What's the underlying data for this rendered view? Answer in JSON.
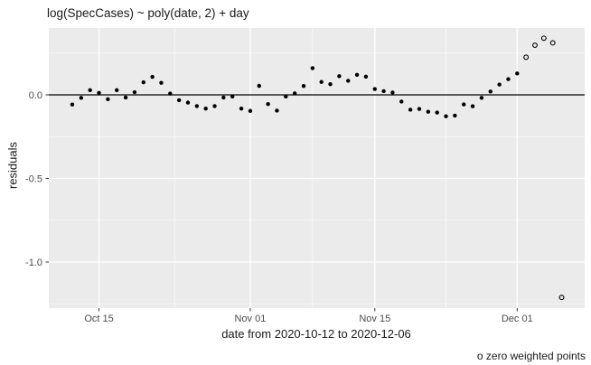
{
  "colors": {
    "panel_bg": "#ebebeb",
    "grid": "#ffffff",
    "point": "#000000",
    "tick_label": "#4d4d4d",
    "tick_mark": "#333333",
    "text": "#1a1a1a",
    "zero_line": "#000000"
  },
  "chart_data": {
    "type": "scatter",
    "title": "log(SpecCases) ~ poly(date, 2) + day",
    "xlabel": "date from 2020-10-12 to 2020-12-06",
    "ylabel": "residuals",
    "caption": "o zero weighted points",
    "zero_line": 0.0,
    "x_axis": {
      "start_date": "2020-10-12",
      "end_date": "2020-12-06",
      "ticks": [
        {
          "label": "Oct 15",
          "day": 3
        },
        {
          "label": "Nov 01",
          "day": 20
        },
        {
          "label": "Nov 15",
          "day": 34
        },
        {
          "label": "Dec 01",
          "day": 50
        }
      ],
      "minor_days": [
        11.5,
        27,
        42
      ]
    },
    "y_axis": {
      "ticks": [
        {
          "label": "0.0",
          "value": 0.0
        },
        {
          "label": "-0.5",
          "value": -0.5
        },
        {
          "label": "-1.0",
          "value": -1.0
        }
      ],
      "minor_values": [
        0.25,
        -0.25,
        -0.75,
        -1.25
      ],
      "range": [
        -1.28,
        0.4
      ]
    },
    "points": [
      {
        "day": 0,
        "residual": -0.058,
        "zero_weighted": false
      },
      {
        "day": 1,
        "residual": -0.018,
        "zero_weighted": false
      },
      {
        "day": 2,
        "residual": 0.028,
        "zero_weighted": false
      },
      {
        "day": 3,
        "residual": 0.012,
        "zero_weighted": false
      },
      {
        "day": 4,
        "residual": -0.026,
        "zero_weighted": false
      },
      {
        "day": 5,
        "residual": 0.028,
        "zero_weighted": false
      },
      {
        "day": 6,
        "residual": -0.016,
        "zero_weighted": false
      },
      {
        "day": 7,
        "residual": 0.016,
        "zero_weighted": false
      },
      {
        "day": 8,
        "residual": 0.075,
        "zero_weighted": false
      },
      {
        "day": 9,
        "residual": 0.108,
        "zero_weighted": false
      },
      {
        "day": 10,
        "residual": 0.072,
        "zero_weighted": false
      },
      {
        "day": 11,
        "residual": 0.008,
        "zero_weighted": false
      },
      {
        "day": 12,
        "residual": -0.032,
        "zero_weighted": false
      },
      {
        "day": 13,
        "residual": -0.046,
        "zero_weighted": false
      },
      {
        "day": 14,
        "residual": -0.067,
        "zero_weighted": false
      },
      {
        "day": 15,
        "residual": -0.082,
        "zero_weighted": false
      },
      {
        "day": 16,
        "residual": -0.067,
        "zero_weighted": false
      },
      {
        "day": 17,
        "residual": -0.016,
        "zero_weighted": false
      },
      {
        "day": 18,
        "residual": -0.01,
        "zero_weighted": false
      },
      {
        "day": 19,
        "residual": -0.082,
        "zero_weighted": false
      },
      {
        "day": 20,
        "residual": -0.096,
        "zero_weighted": false
      },
      {
        "day": 21,
        "residual": 0.054,
        "zero_weighted": false
      },
      {
        "day": 22,
        "residual": -0.055,
        "zero_weighted": false
      },
      {
        "day": 23,
        "residual": -0.094,
        "zero_weighted": false
      },
      {
        "day": 24,
        "residual": -0.01,
        "zero_weighted": false
      },
      {
        "day": 25,
        "residual": 0.009,
        "zero_weighted": false
      },
      {
        "day": 26,
        "residual": 0.053,
        "zero_weighted": false
      },
      {
        "day": 27,
        "residual": 0.16,
        "zero_weighted": false
      },
      {
        "day": 28,
        "residual": 0.077,
        "zero_weighted": false
      },
      {
        "day": 29,
        "residual": 0.064,
        "zero_weighted": false
      },
      {
        "day": 30,
        "residual": 0.112,
        "zero_weighted": false
      },
      {
        "day": 31,
        "residual": 0.084,
        "zero_weighted": false
      },
      {
        "day": 32,
        "residual": 0.12,
        "zero_weighted": false
      },
      {
        "day": 33,
        "residual": 0.109,
        "zero_weighted": false
      },
      {
        "day": 34,
        "residual": 0.035,
        "zero_weighted": false
      },
      {
        "day": 35,
        "residual": 0.022,
        "zero_weighted": false
      },
      {
        "day": 36,
        "residual": 0.014,
        "zero_weighted": false
      },
      {
        "day": 37,
        "residual": -0.04,
        "zero_weighted": false
      },
      {
        "day": 38,
        "residual": -0.089,
        "zero_weighted": false
      },
      {
        "day": 39,
        "residual": -0.084,
        "zero_weighted": false
      },
      {
        "day": 40,
        "residual": -0.101,
        "zero_weighted": false
      },
      {
        "day": 41,
        "residual": -0.106,
        "zero_weighted": false
      },
      {
        "day": 42,
        "residual": -0.128,
        "zero_weighted": false
      },
      {
        "day": 43,
        "residual": -0.124,
        "zero_weighted": false
      },
      {
        "day": 44,
        "residual": -0.057,
        "zero_weighted": false
      },
      {
        "day": 45,
        "residual": -0.068,
        "zero_weighted": false
      },
      {
        "day": 46,
        "residual": -0.018,
        "zero_weighted": false
      },
      {
        "day": 47,
        "residual": 0.02,
        "zero_weighted": false
      },
      {
        "day": 48,
        "residual": 0.062,
        "zero_weighted": false
      },
      {
        "day": 49,
        "residual": 0.094,
        "zero_weighted": false
      },
      {
        "day": 50,
        "residual": 0.128,
        "zero_weighted": false
      },
      {
        "day": 51,
        "residual": 0.225,
        "zero_weighted": true
      },
      {
        "day": 52,
        "residual": 0.297,
        "zero_weighted": true
      },
      {
        "day": 53,
        "residual": 0.339,
        "zero_weighted": true
      },
      {
        "day": 54,
        "residual": 0.311,
        "zero_weighted": true
      },
      {
        "day": 55,
        "residual": -1.212,
        "zero_weighted": true
      }
    ]
  }
}
